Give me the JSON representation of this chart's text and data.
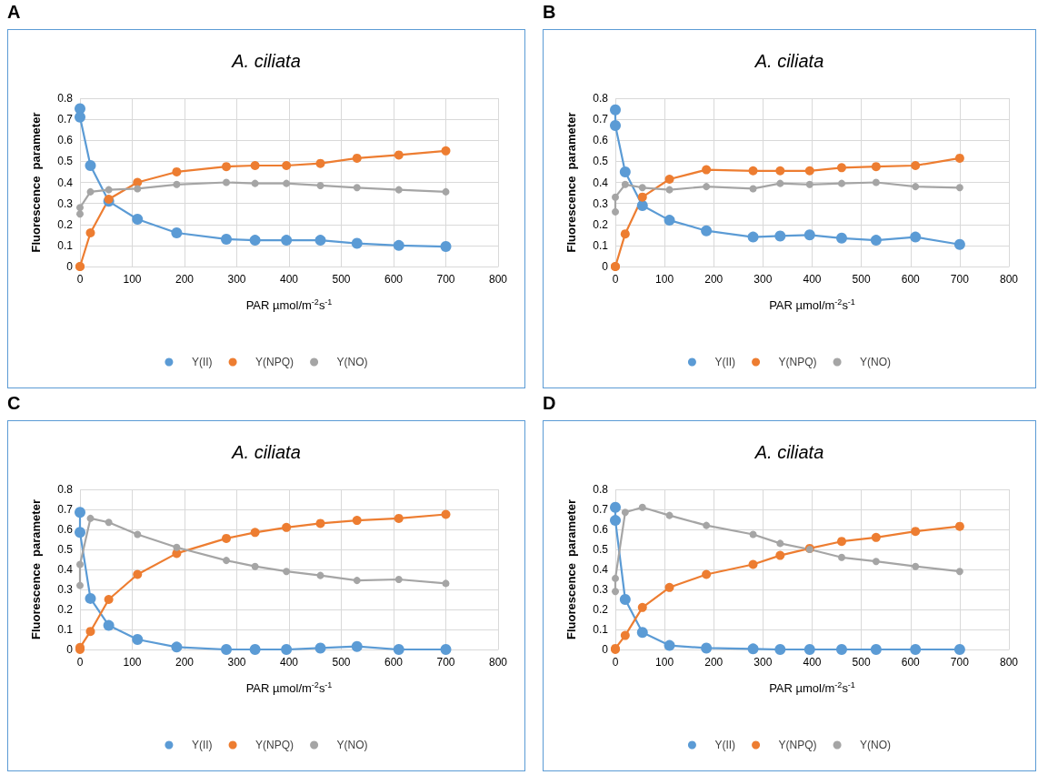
{
  "chart_data": [
    {
      "type": "line",
      "title": "A. ciliata",
      "annotations": [
        "A"
      ],
      "xlabel": "PAR µmol/m$^{-2}$s$^{-1}$",
      "ylabel": "Fluorescence  parameter",
      "x": [
        0,
        0,
        20,
        55,
        110,
        185,
        280,
        335,
        395,
        460,
        530,
        610,
        700
      ],
      "xlim": [
        0,
        800
      ],
      "xticks": [
        0,
        100,
        200,
        300,
        400,
        500,
        600,
        700,
        800
      ],
      "ylim": [
        0,
        0.8
      ],
      "yticks": [
        0,
        0.1,
        0.2,
        0.3,
        0.4,
        0.5,
        0.6,
        0.7,
        0.8
      ],
      "grid": true,
      "legend": "bottom",
      "marker": "circle",
      "line_style": "solid",
      "series": [
        {
          "name": "Y(II)",
          "color": "#5b9bd5",
          "values": [
            0.75,
            0.71,
            0.48,
            0.31,
            0.225,
            0.16,
            0.13,
            0.125,
            0.125,
            0.125,
            0.11,
            0.1,
            0.095
          ]
        },
        {
          "name": "Y(NPQ)",
          "color": "#ed7d31",
          "values": [
            0,
            0,
            0.16,
            0.32,
            0.4,
            0.45,
            0.475,
            0.48,
            0.48,
            0.49,
            0.515,
            0.53,
            0.55
          ]
        },
        {
          "name": "Y(NO)",
          "color": "#a5a5a5",
          "values": [
            0.25,
            0.28,
            0.355,
            0.365,
            0.37,
            0.39,
            0.4,
            0.395,
            0.395,
            0.385,
            0.375,
            0.365,
            0.355
          ]
        }
      ]
    },
    {
      "type": "line",
      "title": "A. ciliata",
      "annotations": [
        "B"
      ],
      "xlabel": "PAR µmol/m$^{-2}$s$^{-1}$",
      "ylabel": "Fluorescence  parameter",
      "x": [
        0,
        0,
        20,
        55,
        110,
        185,
        280,
        335,
        395,
        460,
        530,
        610,
        700
      ],
      "xlim": [
        0,
        800
      ],
      "xticks": [
        0,
        100,
        200,
        300,
        400,
        500,
        600,
        700,
        800
      ],
      "ylim": [
        0,
        0.8
      ],
      "yticks": [
        0,
        0.1,
        0.2,
        0.3,
        0.4,
        0.5,
        0.6,
        0.7,
        0.8
      ],
      "grid": true,
      "legend": "bottom",
      "marker": "circle",
      "line_style": "solid",
      "series": [
        {
          "name": "Y(II)",
          "color": "#5b9bd5",
          "values": [
            0.745,
            0.67,
            0.45,
            0.29,
            0.22,
            0.17,
            0.14,
            0.145,
            0.15,
            0.135,
            0.125,
            0.14,
            0.105
          ]
        },
        {
          "name": "Y(NPQ)",
          "color": "#ed7d31",
          "values": [
            0,
            0,
            0.155,
            0.33,
            0.415,
            0.46,
            0.455,
            0.455,
            0.455,
            0.47,
            0.475,
            0.48,
            0.515
          ]
        },
        {
          "name": "Y(NO)",
          "color": "#a5a5a5",
          "values": [
            0.26,
            0.33,
            0.39,
            0.375,
            0.365,
            0.38,
            0.37,
            0.395,
            0.39,
            0.395,
            0.4,
            0.38,
            0.375
          ]
        }
      ]
    },
    {
      "type": "line",
      "title": "A. ciliata",
      "annotations": [
        "C"
      ],
      "xlabel": "PAR µmol/m$^{-2}$s$^{-1}$",
      "ylabel": "Fluorescence  parameter",
      "x": [
        0,
        0,
        20,
        55,
        110,
        185,
        280,
        335,
        395,
        460,
        530,
        610,
        700
      ],
      "xlim": [
        0,
        800
      ],
      "xticks": [
        0,
        100,
        200,
        300,
        400,
        500,
        600,
        700,
        800
      ],
      "ylim": [
        0,
        0.8
      ],
      "yticks": [
        0,
        0.1,
        0.2,
        0.3,
        0.4,
        0.5,
        0.6,
        0.7,
        0.8
      ],
      "grid": true,
      "legend": "bottom",
      "marker": "circle",
      "line_style": "solid",
      "series": [
        {
          "name": "Y(II)",
          "color": "#5b9bd5",
          "values": [
            0.685,
            0.585,
            0.255,
            0.12,
            0.05,
            0.012,
            0,
            0,
            0,
            0.007,
            0.015,
            0,
            0
          ]
        },
        {
          "name": "Y(NPQ)",
          "color": "#ed7d31",
          "values": [
            0,
            0.01,
            0.09,
            0.25,
            0.375,
            0.48,
            0.555,
            0.585,
            0.61,
            0.63,
            0.645,
            0.655,
            0.675
          ]
        },
        {
          "name": "Y(NO)",
          "color": "#a5a5a5",
          "values": [
            0.32,
            0.425,
            0.655,
            0.635,
            0.575,
            0.51,
            0.445,
            0.415,
            0.39,
            0.37,
            0.345,
            0.35,
            0.33
          ]
        }
      ]
    },
    {
      "type": "line",
      "title": "A. ciliata",
      "annotations": [
        "D"
      ],
      "xlabel": "PAR µmol/m$^{-2}$s$^{-1}$",
      "ylabel": "Fluorescence  parameter",
      "x": [
        0,
        0,
        20,
        55,
        110,
        185,
        280,
        335,
        395,
        460,
        530,
        610,
        700
      ],
      "xlim": [
        0,
        800
      ],
      "xticks": [
        0,
        100,
        200,
        300,
        400,
        500,
        600,
        700,
        800
      ],
      "ylim": [
        0,
        0.8
      ],
      "yticks": [
        0,
        0.1,
        0.2,
        0.3,
        0.4,
        0.5,
        0.6,
        0.7,
        0.8
      ],
      "grid": true,
      "legend": "bottom",
      "marker": "circle",
      "line_style": "solid",
      "series": [
        {
          "name": "Y(II)",
          "color": "#5b9bd5",
          "values": [
            0.71,
            0.645,
            0.25,
            0.085,
            0.02,
            0.007,
            0.003,
            0,
            0,
            0,
            0,
            0,
            0
          ]
        },
        {
          "name": "Y(NPQ)",
          "color": "#ed7d31",
          "values": [
            0,
            0.005,
            0.07,
            0.21,
            0.31,
            0.375,
            0.425,
            0.47,
            0.505,
            0.54,
            0.56,
            0.59,
            0.615
          ]
        },
        {
          "name": "Y(NO)",
          "color": "#a5a5a5",
          "values": [
            0.29,
            0.355,
            0.685,
            0.71,
            0.67,
            0.62,
            0.575,
            0.53,
            0.5,
            0.46,
            0.44,
            0.415,
            0.39
          ]
        }
      ]
    }
  ]
}
